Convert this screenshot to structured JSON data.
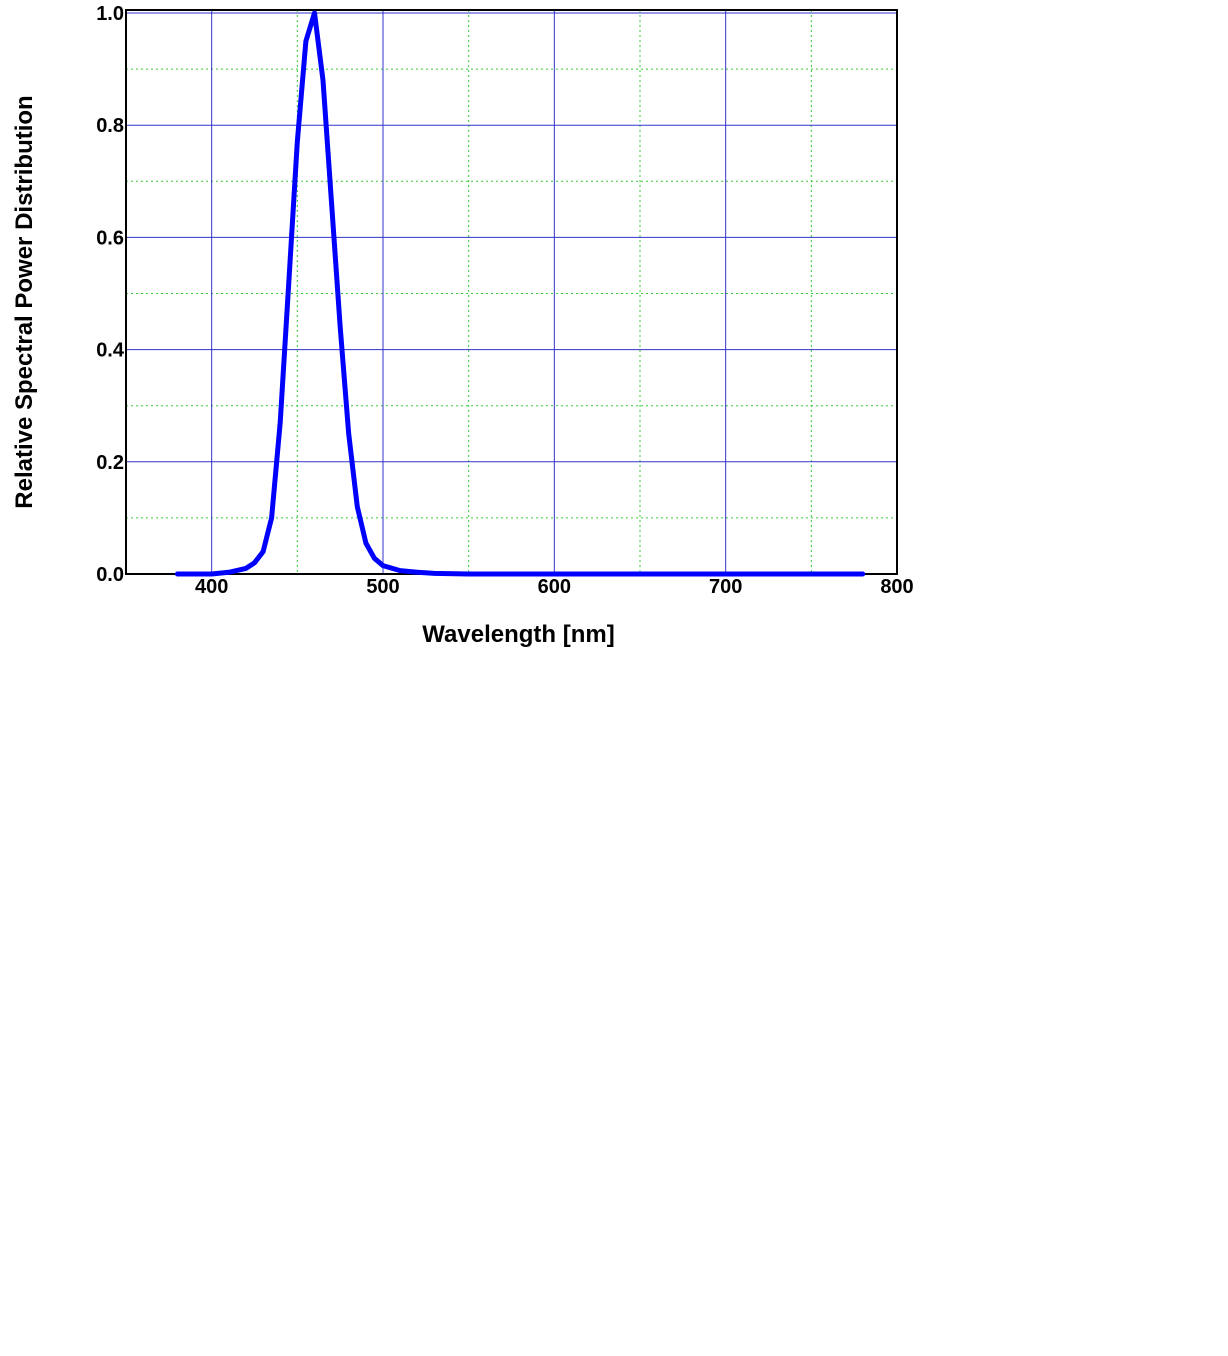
{
  "chart_data": {
    "type": "line",
    "xlabel": "Wavelength [nm]",
    "ylabel": "Relative Spectral Power Distribution",
    "xlim": [
      350,
      800
    ],
    "ylim": [
      0,
      1.0
    ],
    "x_ticks": [
      "400",
      "500",
      "600",
      "700",
      "800"
    ],
    "y_ticks": [
      "0.0",
      "0.2",
      "0.4",
      "0.6",
      "0.8",
      "1.0"
    ],
    "grid": true,
    "grid_colors": {
      "major": "#3333cc",
      "minor": "#33cc33"
    },
    "series": [
      {
        "color": "#0000ff",
        "x": [
          380,
          400,
          410,
          420,
          425,
          430,
          435,
          440,
          445,
          450,
          455,
          460,
          465,
          470,
          475,
          480,
          485,
          490,
          495,
          500,
          510,
          520,
          530,
          550,
          600,
          700,
          780
        ],
        "y": [
          0.0,
          0.0,
          0.003,
          0.01,
          0.02,
          0.04,
          0.1,
          0.27,
          0.52,
          0.77,
          0.95,
          1.0,
          0.88,
          0.66,
          0.44,
          0.25,
          0.12,
          0.055,
          0.028,
          0.015,
          0.006,
          0.003,
          0.001,
          0.0,
          0.0,
          0.0,
          0.0
        ]
      }
    ]
  }
}
